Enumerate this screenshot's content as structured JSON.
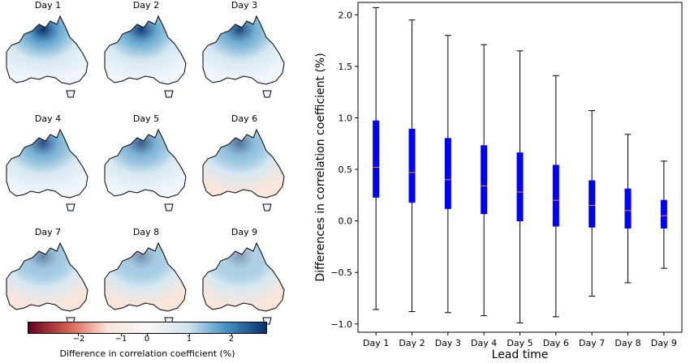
{
  "maps": {
    "titles": [
      "Day 1",
      "Day 2",
      "Day 3",
      "Day 4",
      "Day 5",
      "Day 6",
      "Day 7",
      "Day 8",
      "Day 9"
    ],
    "colorbar": {
      "ticks": [
        "−2",
        "−1",
        "0",
        "1",
        "2"
      ],
      "tick_values": [
        -2,
        -1,
        0,
        1,
        2
      ],
      "range": [
        -2.8,
        2.8
      ],
      "label": "Difference in correlation coefficient (%)",
      "colors": [
        "#67001f",
        "#d6604d",
        "#fbe3d6",
        "#f7f7f7",
        "#d1e5f0",
        "#4393c3",
        "#08306b"
      ]
    }
  },
  "chart_data": {
    "type": "box",
    "title": "",
    "xlabel": "Lead time",
    "ylabel": "Differences in correlation coefficient (%)",
    "ylim": [
      -1.08,
      2.12
    ],
    "yticks": [
      -1.0,
      -0.5,
      0.0,
      0.5,
      1.0,
      1.5,
      2.0
    ],
    "ytick_labels": [
      "−1.0",
      "−0.5",
      "0.0",
      "0.5",
      "1.0",
      "1.5",
      "2.0"
    ],
    "categories": [
      "Day 1",
      "Day 2",
      "Day 3",
      "Day 4",
      "Day 5",
      "Day 6",
      "Day 7",
      "Day 8",
      "Day 9"
    ],
    "boxes": [
      {
        "min": -0.86,
        "q1": 0.23,
        "median": 0.52,
        "q3": 0.97,
        "max": 2.07
      },
      {
        "min": -0.88,
        "q1": 0.18,
        "median": 0.47,
        "q3": 0.89,
        "max": 1.95
      },
      {
        "min": -0.89,
        "q1": 0.12,
        "median": 0.4,
        "q3": 0.8,
        "max": 1.8
      },
      {
        "min": -0.92,
        "q1": 0.07,
        "median": 0.34,
        "q3": 0.73,
        "max": 1.71
      },
      {
        "min": -0.99,
        "q1": 0.0,
        "median": 0.28,
        "q3": 0.66,
        "max": 1.65
      },
      {
        "min": -0.93,
        "q1": -0.05,
        "median": 0.2,
        "q3": 0.54,
        "max": 1.41
      },
      {
        "min": -0.73,
        "q1": -0.06,
        "median": 0.15,
        "q3": 0.39,
        "max": 1.07
      },
      {
        "min": -0.6,
        "q1": -0.07,
        "median": 0.1,
        "q3": 0.31,
        "max": 0.84
      },
      {
        "min": -0.46,
        "q1": -0.07,
        "median": 0.05,
        "q3": 0.2,
        "max": 0.58
      }
    ],
    "box_color": "#0000ff",
    "median_color": "#ff8c00",
    "whisker_color": "#000000",
    "grid": false
  }
}
